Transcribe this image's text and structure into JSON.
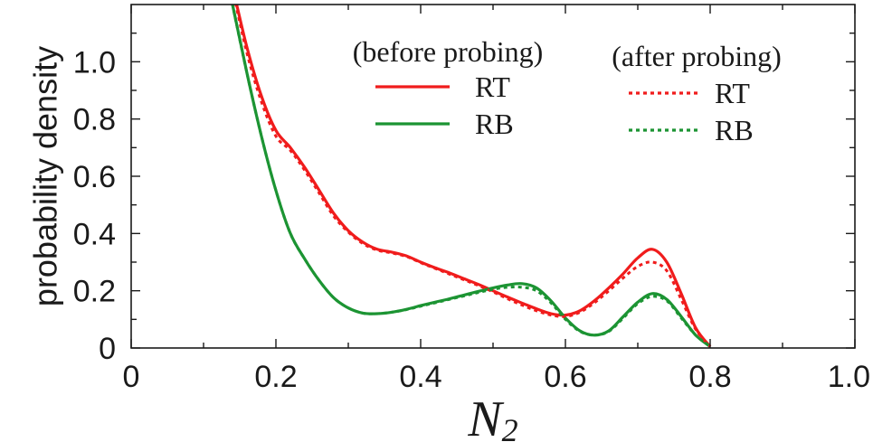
{
  "chart_data": {
    "type": "line",
    "xlabel": "N",
    "xlabel_subscript": "2",
    "ylabel": "probability density",
    "xlim": [
      0,
      1.0
    ],
    "ylim": [
      0,
      1.2
    ],
    "xticks": [
      0,
      0.2,
      0.4,
      0.6,
      0.8,
      1.0
    ],
    "xtick_labels": [
      "0",
      "0.2",
      "0.4",
      "0.6",
      "0.8",
      "1.0"
    ],
    "xticks_minor": [
      0.1,
      0.3,
      0.5,
      0.7,
      0.9
    ],
    "yticks": [
      0,
      0.2,
      0.4,
      0.6,
      0.8,
      1.0
    ],
    "ytick_labels": [
      "0",
      "0.2",
      "0.4",
      "0.6",
      "0.8",
      "1.0"
    ],
    "yticks_minor": [
      0.1,
      0.3,
      0.5,
      0.7,
      0.9,
      1.1
    ],
    "grid": false,
    "legend": {
      "placement": "top-right",
      "group_titles": [
        "(before probing)",
        "(after probing)"
      ]
    },
    "series": [
      {
        "name": "RT",
        "group": "(before probing)",
        "color": "#f01c1c",
        "dash": "solid",
        "x": [
          0.12,
          0.14,
          0.16,
          0.18,
          0.2,
          0.22,
          0.24,
          0.26,
          0.28,
          0.3,
          0.32,
          0.34,
          0.36,
          0.38,
          0.4,
          0.42,
          0.44,
          0.46,
          0.48,
          0.5,
          0.52,
          0.54,
          0.56,
          0.58,
          0.6,
          0.62,
          0.64,
          0.66,
          0.68,
          0.7,
          0.72,
          0.74,
          0.76,
          0.78,
          0.8
        ],
        "y": [
          1.45,
          1.26,
          1.05,
          0.88,
          0.76,
          0.7,
          0.63,
          0.55,
          0.47,
          0.41,
          0.37,
          0.345,
          0.335,
          0.322,
          0.3,
          0.28,
          0.262,
          0.242,
          0.222,
          0.2,
          0.178,
          0.157,
          0.137,
          0.12,
          0.115,
          0.13,
          0.165,
          0.21,
          0.26,
          0.315,
          0.345,
          0.3,
          0.19,
          0.07,
          0.005
        ]
      },
      {
        "name": "RB",
        "group": "(before probing)",
        "color": "#1c9433",
        "dash": "solid",
        "x": [
          0.12,
          0.14,
          0.16,
          0.18,
          0.2,
          0.22,
          0.24,
          0.26,
          0.28,
          0.3,
          0.32,
          0.34,
          0.36,
          0.38,
          0.4,
          0.42,
          0.44,
          0.46,
          0.48,
          0.5,
          0.52,
          0.54,
          0.56,
          0.58,
          0.6,
          0.62,
          0.64,
          0.66,
          0.68,
          0.7,
          0.72,
          0.74,
          0.76,
          0.78,
          0.8
        ],
        "y": [
          1.45,
          1.2,
          0.96,
          0.74,
          0.55,
          0.4,
          0.31,
          0.235,
          0.175,
          0.14,
          0.122,
          0.12,
          0.125,
          0.135,
          0.148,
          0.16,
          0.172,
          0.185,
          0.198,
          0.21,
          0.22,
          0.225,
          0.21,
          0.165,
          0.105,
          0.06,
          0.045,
          0.06,
          0.11,
          0.16,
          0.19,
          0.17,
          0.11,
          0.045,
          0.005
        ]
      },
      {
        "name": "RT",
        "group": "(after probing)",
        "color": "#f01c1c",
        "dash": "dotted",
        "x": [
          0.12,
          0.14,
          0.16,
          0.18,
          0.2,
          0.22,
          0.24,
          0.26,
          0.28,
          0.3,
          0.32,
          0.34,
          0.36,
          0.38,
          0.4,
          0.42,
          0.44,
          0.46,
          0.48,
          0.5,
          0.52,
          0.54,
          0.56,
          0.58,
          0.6,
          0.62,
          0.64,
          0.66,
          0.68,
          0.7,
          0.72,
          0.74,
          0.76,
          0.78,
          0.8
        ],
        "y": [
          1.45,
          1.25,
          1.03,
          0.86,
          0.74,
          0.69,
          0.62,
          0.54,
          0.46,
          0.405,
          0.365,
          0.342,
          0.332,
          0.32,
          0.298,
          0.278,
          0.258,
          0.238,
          0.218,
          0.196,
          0.172,
          0.15,
          0.13,
          0.115,
          0.11,
          0.125,
          0.158,
          0.2,
          0.245,
          0.285,
          0.3,
          0.27,
          0.17,
          0.065,
          0.005
        ]
      },
      {
        "name": "RB",
        "group": "(after probing)",
        "color": "#1c9433",
        "dash": "dotted",
        "x": [
          0.12,
          0.14,
          0.16,
          0.18,
          0.2,
          0.22,
          0.24,
          0.26,
          0.28,
          0.3,
          0.32,
          0.34,
          0.36,
          0.38,
          0.4,
          0.42,
          0.44,
          0.46,
          0.48,
          0.5,
          0.52,
          0.54,
          0.56,
          0.58,
          0.6,
          0.62,
          0.64,
          0.66,
          0.68,
          0.7,
          0.72,
          0.74,
          0.76,
          0.78,
          0.8
        ],
        "y": [
          1.45,
          1.2,
          0.96,
          0.74,
          0.55,
          0.4,
          0.31,
          0.235,
          0.175,
          0.14,
          0.122,
          0.12,
          0.125,
          0.134,
          0.146,
          0.158,
          0.17,
          0.182,
          0.194,
          0.205,
          0.212,
          0.212,
          0.2,
          0.158,
          0.1,
          0.058,
          0.045,
          0.058,
          0.105,
          0.155,
          0.18,
          0.165,
          0.105,
          0.045,
          0.005
        ]
      }
    ]
  }
}
